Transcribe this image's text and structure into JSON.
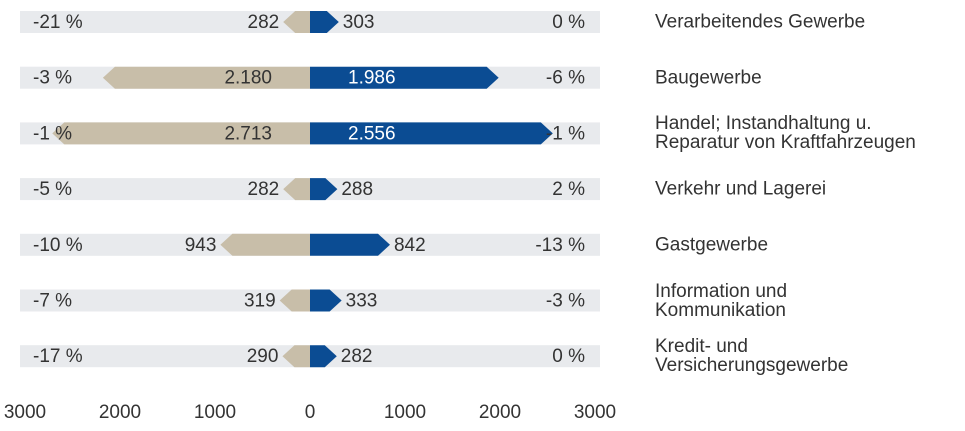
{
  "chart_data": {
    "type": "butterfly",
    "categories": [
      "Verarbeitendes Gewerbe",
      "Baugewerbe",
      "Handel; Instandhaltung u.\nReparatur von Kraftfahrzeugen",
      "Verkehr und Lagerei",
      "Gastgewerbe",
      "Information und\nKommunikation",
      "Kredit- und\nVersicherungsgewerbe"
    ],
    "series": [
      {
        "side": "left",
        "color": "#c8bea9",
        "values": [
          282,
          2180,
          2713,
          282,
          943,
          319,
          290
        ],
        "value_labels": [
          "282",
          "2.180",
          "2.713",
          "282",
          "943",
          "319",
          "290"
        ],
        "changes": [
          -21,
          -3,
          -1,
          -5,
          -10,
          -7,
          -17
        ],
        "change_labels": [
          "-21 %",
          "-3 %",
          "-1 %",
          "-5 %",
          "-10 %",
          "-7 %",
          "-17 %"
        ]
      },
      {
        "side": "right",
        "color": "#0b4c93",
        "values": [
          303,
          1986,
          2556,
          288,
          842,
          333,
          282
        ],
        "value_labels": [
          "303",
          "1.986",
          "2.556",
          "288",
          "842",
          "333",
          "282"
        ],
        "changes": [
          0,
          -6,
          -1,
          2,
          -13,
          -3,
          0
        ],
        "change_labels": [
          "0 %",
          "-6 %",
          "-1 %",
          "2 %",
          "-13 %",
          "-3 %",
          "0 %"
        ]
      }
    ],
    "xlim": [
      -3000,
      3000
    ],
    "xticks": [
      {
        "value": -3000,
        "label": "3000"
      },
      {
        "value": -2000,
        "label": "2000"
      },
      {
        "value": -1000,
        "label": "1000"
      },
      0,
      1000,
      2000,
      3000
    ]
  }
}
